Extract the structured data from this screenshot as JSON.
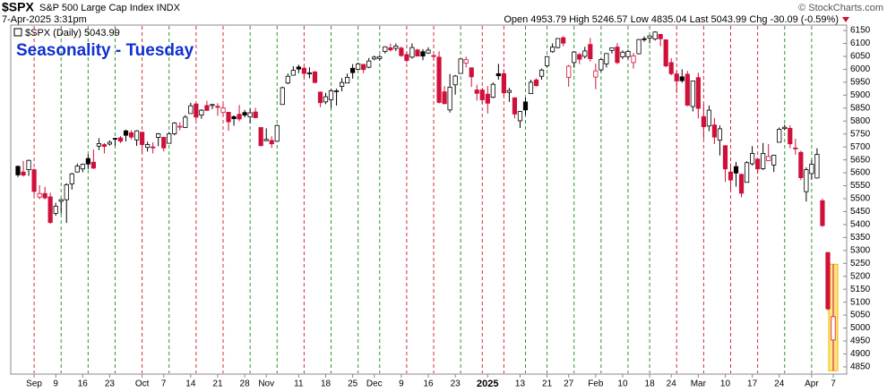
{
  "header": {
    "symbol": "$SPX",
    "name": "S&P 500 Large Cap Index INDX",
    "date": "7-Apr-2025 3:31pm",
    "stats": "Open 4953.79 High 5246.57 Low 4835.04 Last 5043.99 Chg -30.09 (-0.59%)",
    "copyright": "© StockCharts.com"
  },
  "chart_data": {
    "type": "candlestick",
    "title": "Seasonality - Tuesday",
    "legend": "$SPX (Daily) 5043.99",
    "categories": [
      null,
      null,
      null,
      "Sep",
      null,
      null,
      null,
      "9",
      null,
      null,
      null,
      null,
      "16",
      null,
      null,
      null,
      null,
      "23",
      null,
      null,
      null,
      null,
      null,
      "Oct",
      null,
      null,
      null,
      "7",
      null,
      null,
      null,
      null,
      "14",
      null,
      null,
      null,
      null,
      "21",
      null,
      null,
      null,
      null,
      "28",
      null,
      null,
      null,
      "Nov",
      null,
      null,
      null,
      null,
      null,
      "11",
      null,
      null,
      null,
      null,
      "18",
      null,
      null,
      null,
      null,
      "25",
      null,
      null,
      null,
      "Dec",
      null,
      null,
      null,
      null,
      "9",
      null,
      null,
      null,
      null,
      "16",
      null,
      null,
      null,
      null,
      "23",
      null,
      null,
      null,
      null,
      null,
      "2025",
      null,
      null,
      null,
      null,
      null,
      "13",
      null,
      null,
      null,
      null,
      "21",
      null,
      null,
      null,
      "27",
      null,
      null,
      null,
      null,
      "Feb",
      null,
      null,
      null,
      null,
      "10",
      null,
      null,
      null,
      null,
      "18",
      null,
      null,
      null,
      "24",
      null,
      null,
      null,
      null,
      "Mar",
      null,
      null,
      null,
      null,
      "10",
      null,
      null,
      null,
      null,
      "17",
      null,
      null,
      null,
      null,
      "24",
      null,
      null,
      null,
      null,
      null,
      "Apr",
      null,
      null,
      null,
      "7"
    ],
    "open": [
      5625,
      5603,
      5612,
      5612,
      5506,
      5520,
      5507,
      5443,
      5490,
      5496,
      5557,
      5603,
      5615,
      5655,
      5641,
      5703,
      5709,
      5711,
      5733,
      5735,
      5762,
      5755,
      5727,
      5757,
      5698,
      5700,
      5737,
      5737,
      5714,
      5751,
      5778,
      5775,
      5829,
      5866,
      5823,
      5860,
      5860,
      5857,
      5833,
      5834,
      5817,
      5826,
      5833,
      5816,
      5835,
      5775,
      5724,
      5725,
      5722,
      5864,
      5947,
      5977,
      6009,
      6004,
      5986,
      5990,
      5912,
      5874,
      5882,
      5917,
      5934,
      5947,
      6004,
      6000,
      6019,
      6008,
      6040,
      6042,
      6069,
      6083,
      6081,
      6082,
      6057,
      6047,
      6075,
      6068,
      6063,
      6053,
      6047,
      5913,
      5843,
      5940,
      5984,
      6024,
      6006,
      5920,
      5920,
      5904,
      5892,
      5983,
      5983,
      5911,
      5890,
      5801,
      5874,
      5906,
      5959,
      5973,
      6014,
      6068,
      6084,
      6122,
      5969,
      6026,
      6057,
      6050,
      6096,
      5970,
      5998,
      6021,
      6073,
      6086,
      6048,
      6049,
      6026,
      6060,
      6118,
      6121,
      6117,
      6135,
      6114,
      6026,
      5982,
      5971,
      5981,
      5856,
      5968,
      5817,
      5781,
      5785,
      5726,
      5705,
      5603,
      5624,
      5594,
      5563,
      5635,
      5653,
      5616,
      5647,
      5630,
      5718,
      5771,
      5772,
      5696,
      5679,
      5527,
      5597,
      5580,
      5492,
      5292,
      4953.79
    ],
    "high": [
      5628,
      5646,
      5651,
      5616,
      5552,
      5546,
      5523,
      5484,
      5499,
      5560,
      5600,
      5636,
      5636,
      5671,
      5690,
      5734,
      5715,
      5725,
      5735,
      5742,
      5767,
      5764,
      5765,
      5758,
      5720,
      5718,
      5754,
      5739,
      5758,
      5796,
      5795,
      5823,
      5871,
      5870,
      5846,
      5878,
      5866,
      5869,
      5864,
      5834,
      5822,
      5862,
      5843,
      5847,
      5851,
      5775,
      5772,
      5741,
      5786,
      5933,
      5984,
      6012,
      6018,
      6011,
      6008,
      5993,
      5914,
      5909,
      5925,
      5925,
      5966,
      5984,
      6020,
      6026,
      6020,
      6044,
      6053,
      6055,
      6089,
      6099,
      6100,
      6088,
      6065,
      6100,
      6079,
      6078,
      6085,
      6057,
      6070,
      5935,
      5982,
      5978,
      6040,
      6049,
      6006,
      5940,
      5929,
      5935,
      5949,
      6021,
      6000,
      5928,
      5890,
      5839,
      5891,
      5960,
      5965,
      6003,
      6051,
      6100,
      6119,
      6128,
      6017,
      6070,
      6063,
      6087,
      6121,
      6022,
      6042,
      6062,
      6084,
      6101,
      6073,
      6076,
      6063,
      6117,
      6127,
      6130,
      6147,
      6136,
      6115,
      6043,
      5993,
      6000,
      5994,
      5956,
      5987,
      5866,
      5860,
      5812,
      5783,
      5706,
      5636,
      5642,
      5597,
      5645,
      5703,
      5654,
      5715,
      5711,
      5670,
      5775,
      5786,
      5783,
      5732,
      5685,
      5621,
      5650,
      5695,
      5500,
      5292,
      5246.57
    ],
    "low": [
      5584,
      5585,
      5588,
      5514,
      5498,
      5497,
      5403,
      5434,
      5442,
      5406,
      5535,
      5601,
      5602,
      5614,
      5615,
      5688,
      5675,
      5705,
      5704,
      5715,
      5721,
      5729,
      5704,
      5677,
      5682,
      5675,
      5703,
      5683,
      5713,
      5745,
      5764,
      5773,
      5829,
      5804,
      5809,
      5840,
      5846,
      5820,
      5819,
      5762,
      5782,
      5799,
      5814,
      5791,
      5811,
      5702,
      5723,
      5696,
      5722,
      5864,
      5942,
      5976,
      5985,
      5968,
      5965,
      5946,
      5854,
      5865,
      5850,
      5860,
      5915,
      5947,
      5964,
      5999,
      5985,
      6004,
      6035,
      6033,
      6061,
      6069,
      6070,
      6048,
      6026,
      6041,
      6051,
      6035,
      6059,
      6035,
      5868,
      5866,
      5833,
      5902,
      5983,
      6007,
      5932,
      5879,
      5868,
      5829,
      5888,
      5960,
      5897,
      5874,
      5810,
      5773,
      5822,
      5906,
      5933,
      5960,
      6006,
      6064,
      6081,
      6089,
      5933,
      6006,
      6020,
      6042,
      6030,
      5923,
      5990,
      6007,
      6061,
      6020,
      6040,
      6039,
      6003,
      6058,
      6107,
      6100,
      6111,
      6089,
      6008,
      5977,
      5909,
      5948,
      5858,
      5837,
      5810,
      5732,
      5761,
      5711,
      5667,
      5565,
      5528,
      5547,
      5505,
      5563,
      5628,
      5597,
      5611,
      5645,
      5603,
      5718,
      5764,
      5695,
      5670,
      5572,
      5489,
      5574,
      5578,
      5391,
      5069,
      4835.04
    ],
    "close": [
      5592,
      5591,
      5648,
      5528,
      5520,
      5503,
      5408,
      5471,
      5496,
      5554,
      5596,
      5626,
      5633,
      5634,
      5618,
      5713,
      5702,
      5718,
      5732,
      5722,
      5745,
      5738,
      5762,
      5709,
      5709,
      5699,
      5751,
      5696,
      5751,
      5792,
      5780,
      5815,
      5859,
      5815,
      5842,
      5841,
      5864,
      5853,
      5851,
      5797,
      5809,
      5808,
      5823,
      5832,
      5813,
      5705,
      5729,
      5712,
      5783,
      5929,
      5973,
      5996,
      6001,
      5984,
      5985,
      5949,
      5871,
      5894,
      5917,
      5917,
      5949,
      5969,
      5987,
      6021,
      5999,
      6032,
      6047,
      6049,
      6087,
      6075,
      6090,
      6053,
      6034,
      6084,
      6051,
      6051,
      6074,
      6050,
      5872,
      5867,
      5931,
      5974,
      6040,
      6037,
      5971,
      5907,
      5882,
      5869,
      5942,
      5975,
      5909,
      5918,
      5827,
      5837,
      5843,
      5950,
      5937,
      5997,
      6049,
      6086,
      6119,
      6101,
      6012,
      6067,
      6039,
      6071,
      6041,
      5994,
      6038,
      6061,
      6083,
      6026,
      6066,
      6069,
      6052,
      6115,
      6115,
      6129,
      6144,
      6118,
      6013,
      5983,
      5955,
      5956,
      5861,
      5955,
      5849,
      5778,
      5842,
      5738,
      5770,
      5615,
      5572,
      5599,
      5521,
      5639,
      5675,
      5615,
      5675,
      5663,
      5668,
      5768,
      5776,
      5712,
      5693,
      5581,
      5612,
      5633,
      5671,
      5396,
      5074,
      5043.99
    ],
    "up_color": "#000000",
    "down_color": "#d0103a",
    "ylim": [
      4822,
      6171
    ],
    "yticks": [
      4850,
      4900,
      4950,
      5000,
      5050,
      5100,
      5150,
      5200,
      5250,
      5300,
      5350,
      5400,
      5450,
      5500,
      5550,
      5600,
      5650,
      5700,
      5750,
      5800,
      5850,
      5900,
      5950,
      6000,
      6050,
      6100,
      6150
    ],
    "grid": false
  }
}
